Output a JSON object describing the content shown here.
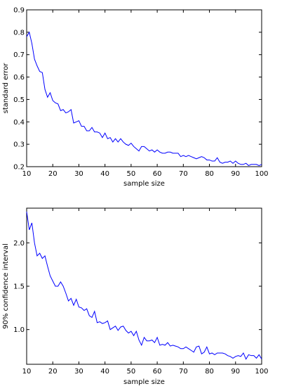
{
  "chart_data": [
    {
      "type": "line",
      "title": "",
      "xlabel": "sample size",
      "ylabel": "standard error",
      "xlim": [
        10,
        100
      ],
      "ylim": [
        0.2,
        0.9
      ],
      "xticks": [
        10,
        20,
        30,
        40,
        50,
        60,
        70,
        80,
        90,
        100
      ],
      "yticks": [
        0.2,
        0.3,
        0.4,
        0.5,
        0.6,
        0.7,
        0.8,
        0.9
      ],
      "ytick_labels": [
        "0.2",
        "0.3",
        "0.4",
        "0.5",
        "0.6",
        "0.7",
        "0.8",
        "0.9"
      ],
      "grid": false,
      "color": "#0000ff",
      "x": [
        10,
        11,
        12,
        13,
        14,
        15,
        16,
        17,
        18,
        19,
        20,
        21,
        22,
        23,
        24,
        25,
        26,
        27,
        28,
        29,
        30,
        31,
        32,
        33,
        34,
        35,
        36,
        37,
        38,
        39,
        40,
        41,
        42,
        43,
        44,
        45,
        46,
        47,
        48,
        49,
        50,
        51,
        52,
        53,
        54,
        55,
        56,
        57,
        58,
        59,
        60,
        61,
        62,
        63,
        64,
        65,
        66,
        67,
        68,
        69,
        70,
        71,
        72,
        73,
        74,
        75,
        76,
        77,
        78,
        79,
        80,
        81,
        82,
        83,
        84,
        85,
        86,
        87,
        88,
        89,
        90,
        91,
        92,
        93,
        94,
        95,
        96,
        97,
        98,
        99,
        100
      ],
      "values": [
        0.78,
        0.8,
        0.75,
        0.68,
        0.65,
        0.625,
        0.62,
        0.545,
        0.51,
        0.53,
        0.495,
        0.485,
        0.48,
        0.45,
        0.455,
        0.44,
        0.445,
        0.455,
        0.395,
        0.4,
        0.405,
        0.38,
        0.38,
        0.36,
        0.36,
        0.375,
        0.355,
        0.355,
        0.35,
        0.33,
        0.35,
        0.325,
        0.33,
        0.31,
        0.325,
        0.31,
        0.325,
        0.31,
        0.3,
        0.295,
        0.305,
        0.29,
        0.28,
        0.27,
        0.29,
        0.29,
        0.28,
        0.27,
        0.275,
        0.265,
        0.275,
        0.265,
        0.26,
        0.26,
        0.265,
        0.265,
        0.26,
        0.26,
        0.26,
        0.245,
        0.25,
        0.245,
        0.25,
        0.245,
        0.24,
        0.235,
        0.24,
        0.245,
        0.24,
        0.23,
        0.23,
        0.225,
        0.225,
        0.24,
        0.22,
        0.215,
        0.22,
        0.22,
        0.225,
        0.215,
        0.225,
        0.215,
        0.21,
        0.21,
        0.215,
        0.205,
        0.21,
        0.21,
        0.21,
        0.205,
        0.21
      ]
    },
    {
      "type": "line",
      "title": "",
      "xlabel": "sample size",
      "ylabel": "90% confidence interval",
      "xlim": [
        10,
        100
      ],
      "ylim": [
        0.6,
        2.4
      ],
      "xticks": [
        10,
        20,
        30,
        40,
        50,
        60,
        70,
        80,
        90,
        100
      ],
      "yticks": [
        1.0,
        1.5,
        2.0
      ],
      "ytick_labels": [
        "1.0",
        "1.5",
        "2.0"
      ],
      "grid": false,
      "color": "#0000ff",
      "x": [
        10,
        11,
        12,
        13,
        14,
        15,
        16,
        17,
        18,
        19,
        20,
        21,
        22,
        23,
        24,
        25,
        26,
        27,
        28,
        29,
        30,
        31,
        32,
        33,
        34,
        35,
        36,
        37,
        38,
        39,
        40,
        41,
        42,
        43,
        44,
        45,
        46,
        47,
        48,
        49,
        50,
        51,
        52,
        53,
        54,
        55,
        56,
        57,
        58,
        59,
        60,
        61,
        62,
        63,
        64,
        65,
        66,
        67,
        68,
        69,
        70,
        71,
        72,
        73,
        74,
        75,
        76,
        77,
        78,
        79,
        80,
        81,
        82,
        83,
        84,
        85,
        86,
        87,
        88,
        89,
        90,
        91,
        92,
        93,
        94,
        95,
        96,
        97,
        98,
        99,
        100
      ],
      "values": [
        2.36,
        2.15,
        2.23,
        2.0,
        1.85,
        1.88,
        1.82,
        1.85,
        1.73,
        1.62,
        1.56,
        1.5,
        1.5,
        1.55,
        1.5,
        1.42,
        1.33,
        1.36,
        1.28,
        1.35,
        1.26,
        1.25,
        1.22,
        1.24,
        1.16,
        1.14,
        1.21,
        1.08,
        1.09,
        1.07,
        1.08,
        1.1,
        1.0,
        1.02,
        1.04,
        0.99,
        1.03,
        1.04,
        0.99,
        0.96,
        0.98,
        0.93,
        0.98,
        0.88,
        0.82,
        0.91,
        0.87,
        0.87,
        0.88,
        0.85,
        0.91,
        0.82,
        0.83,
        0.82,
        0.85,
        0.81,
        0.82,
        0.81,
        0.8,
        0.78,
        0.78,
        0.8,
        0.78,
        0.76,
        0.74,
        0.8,
        0.81,
        0.72,
        0.74,
        0.8,
        0.72,
        0.73,
        0.71,
        0.73,
        0.73,
        0.73,
        0.72,
        0.7,
        0.69,
        0.67,
        0.69,
        0.7,
        0.69,
        0.73,
        0.66,
        0.71,
        0.7,
        0.7,
        0.67,
        0.71,
        0.66
      ]
    }
  ]
}
